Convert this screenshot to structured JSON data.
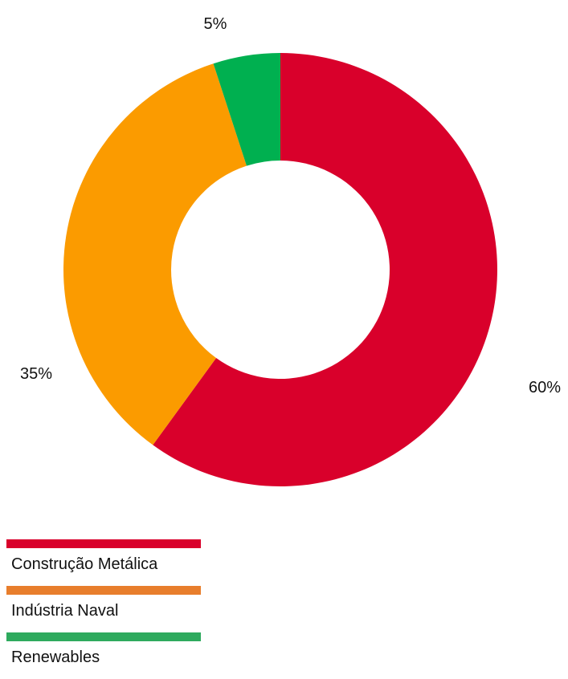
{
  "chart_data": {
    "type": "pie",
    "variant": "donut",
    "title": "",
    "slices": [
      {
        "label": "Construção Metálica",
        "value": 60,
        "value_label": "60%",
        "color": "#d9002b",
        "legend_color": "#d9002b"
      },
      {
        "label": "Indústria Naval",
        "value": 35,
        "value_label": "35%",
        "color": "#fb9b00",
        "legend_color": "#e87e2c"
      },
      {
        "label": "Renewables",
        "value": 5,
        "value_label": "5%",
        "color": "#00b050",
        "legend_color": "#2eaa5e"
      }
    ],
    "start_angle_deg": 0,
    "direction": "clockwise",
    "legend_position": "bottom-left"
  }
}
